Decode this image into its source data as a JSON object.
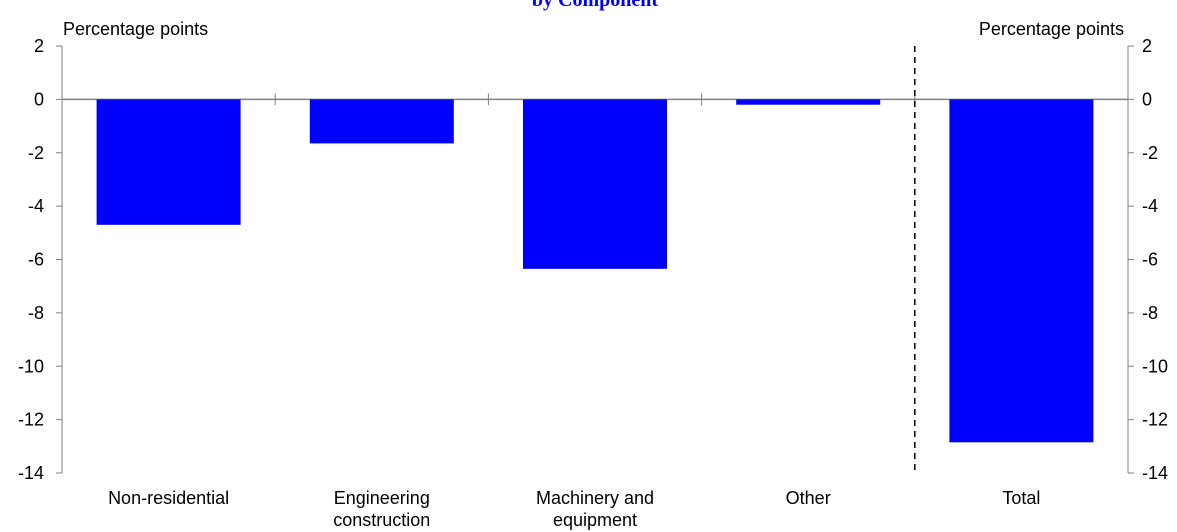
{
  "chart_data": {
    "type": "bar",
    "title": "by Component",
    "title_color": "#0000ff",
    "bar_color": "#0000ff",
    "left_axis_label": "Percentage points",
    "right_axis_label": "Percentage points",
    "ylim": [
      -14,
      2
    ],
    "yticks": [
      2,
      0,
      -2,
      -4,
      -6,
      -8,
      -10,
      -12,
      -14
    ],
    "categories": [
      [
        "Non-residential"
      ],
      [
        "Engineering",
        "construction"
      ],
      [
        "Machinery and",
        "equipment"
      ],
      [
        "Other"
      ],
      [
        "Total"
      ]
    ],
    "values": [
      -4.7,
      -1.65,
      -6.35,
      -0.2,
      -12.85
    ],
    "grid": false,
    "separator_before_index": 4
  }
}
